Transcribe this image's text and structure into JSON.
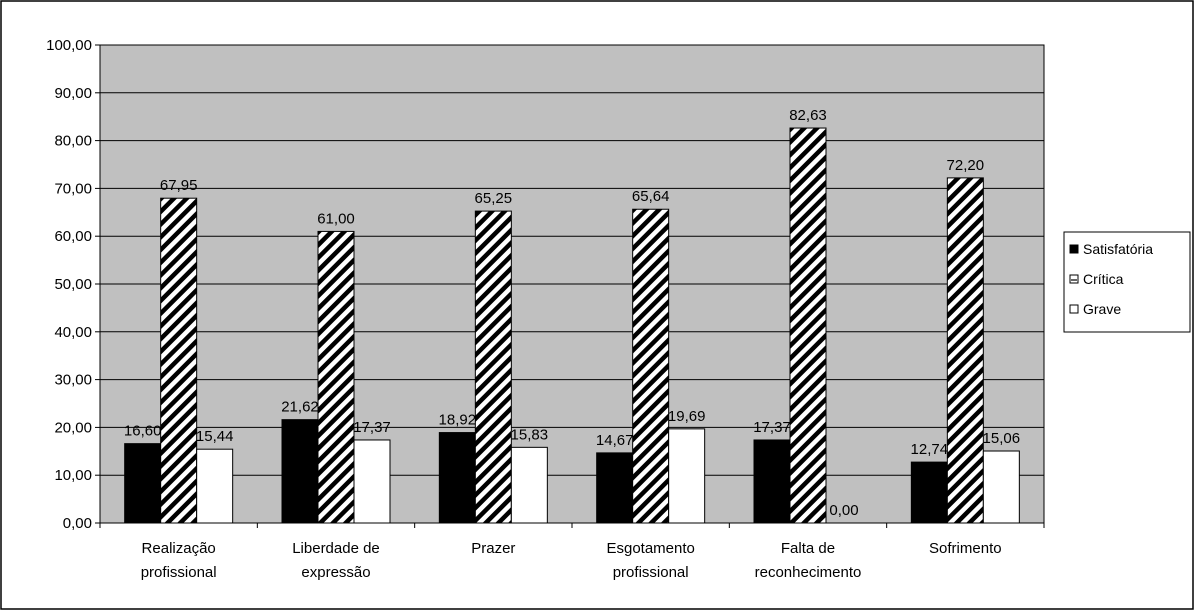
{
  "chart_data": {
    "type": "bar",
    "title": "",
    "xlabel": "",
    "ylabel": "",
    "ylim": [
      0,
      100
    ],
    "yticks": [
      "0,00",
      "10,00",
      "20,00",
      "30,00",
      "40,00",
      "50,00",
      "60,00",
      "70,00",
      "80,00",
      "90,00",
      "100,00"
    ],
    "categories": [
      [
        "Realização",
        "profissional"
      ],
      [
        "Liberdade de",
        "expressão"
      ],
      [
        "Prazer"
      ],
      [
        "Esgotamento",
        "profissional"
      ],
      [
        "Falta de",
        "reconhecimento"
      ],
      [
        "Sofrimento"
      ]
    ],
    "series": [
      {
        "name": "Satisfatória",
        "pattern": "solid-black",
        "values": [
          16.6,
          21.62,
          18.92,
          14.67,
          17.37,
          12.74
        ],
        "labels": [
          "16,60",
          "21,62",
          "18,92",
          "14,67",
          "17,37",
          "12,74"
        ]
      },
      {
        "name": "Crítica",
        "pattern": "diagonal-hatch",
        "values": [
          67.95,
          61.0,
          65.25,
          65.64,
          82.63,
          72.2
        ],
        "labels": [
          "67,95",
          "61,00",
          "65,25",
          "65,64",
          "82,63",
          "72,20"
        ]
      },
      {
        "name": "Grave",
        "pattern": "white",
        "values": [
          15.44,
          17.37,
          15.83,
          19.69,
          0.0,
          15.06
        ],
        "labels": [
          "15,44",
          "17,37",
          "15,83",
          "19,69",
          "0,00",
          "15,06"
        ]
      }
    ],
    "grid": true,
    "legend_position": "right",
    "colors": {
      "plot_background": "#c0c0c0",
      "bar_dark": "#000000",
      "bar_light": "#ffffff"
    }
  }
}
